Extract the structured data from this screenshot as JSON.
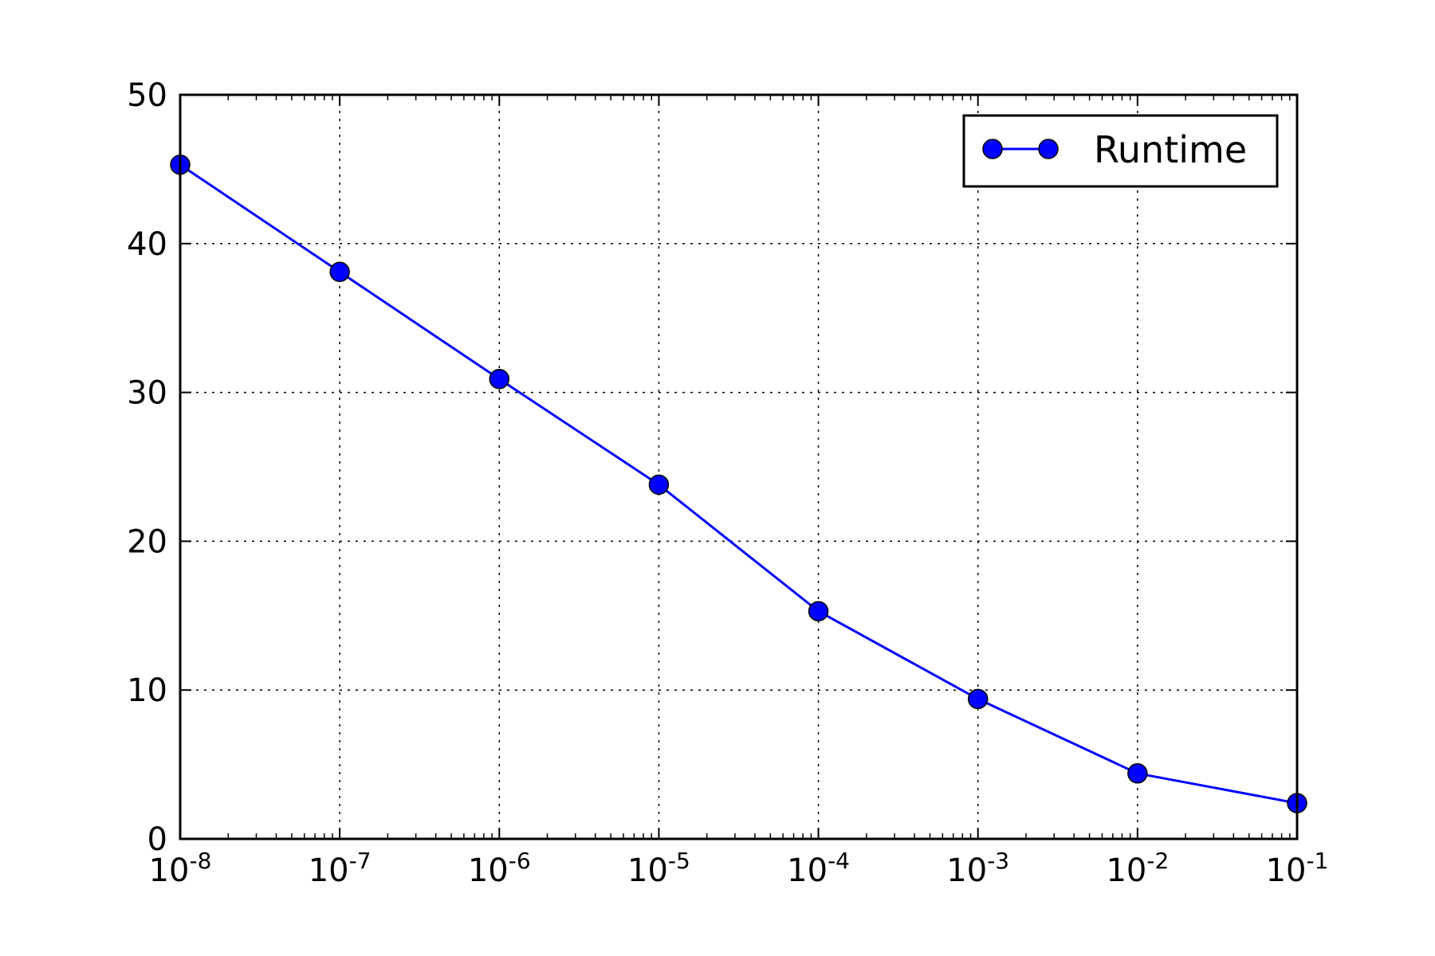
{
  "chart_data": {
    "type": "line",
    "title": "",
    "xlabel": "",
    "ylabel": "",
    "x_scale": "log",
    "xlim": [
      1e-08,
      0.1
    ],
    "ylim": [
      0,
      50
    ],
    "grid": true,
    "legend_position": "top-right",
    "x": [
      1e-08,
      1e-07,
      1e-06,
      1e-05,
      0.0001,
      0.001,
      0.01,
      0.1
    ],
    "x_tick_labels": [
      {
        "base": "10",
        "exp": "-8"
      },
      {
        "base": "10",
        "exp": "-7"
      },
      {
        "base": "10",
        "exp": "-6"
      },
      {
        "base": "10",
        "exp": "-5"
      },
      {
        "base": "10",
        "exp": "-4"
      },
      {
        "base": "10",
        "exp": "-3"
      },
      {
        "base": "10",
        "exp": "-2"
      },
      {
        "base": "10",
        "exp": "-1"
      }
    ],
    "y_ticks": [
      0,
      10,
      20,
      30,
      40,
      50
    ],
    "y_tick_labels": [
      "0",
      "10",
      "20",
      "30",
      "40",
      "50"
    ],
    "series": [
      {
        "name": "Runtime",
        "color": "#0000ff",
        "marker": "circle",
        "values": [
          45.3,
          38.1,
          30.9,
          23.8,
          15.3,
          9.4,
          4.4,
          2.4
        ]
      }
    ]
  }
}
